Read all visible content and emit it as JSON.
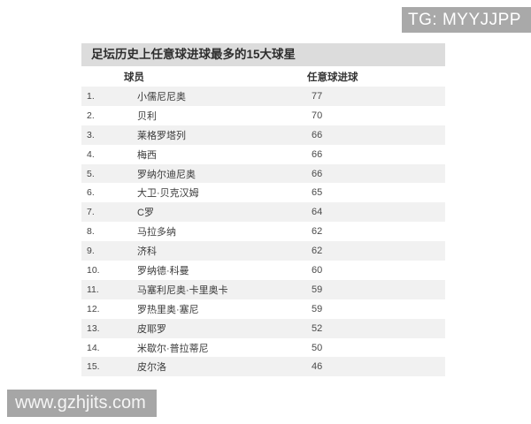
{
  "badge": {
    "label": "TG: MYYJJPP"
  },
  "watermark": {
    "label": "www.gzhjits.com"
  },
  "chart_data": {
    "type": "table",
    "title": "足坛历史上任意球进球最多的15大球星",
    "columns": [
      "球员",
      "任意球进球"
    ],
    "rows": [
      {
        "rank": "1.",
        "player": "小儒尼尼奥",
        "goals": 77
      },
      {
        "rank": "2.",
        "player": "贝利",
        "goals": 70
      },
      {
        "rank": "3.",
        "player": "莱格罗塔列",
        "goals": 66
      },
      {
        "rank": "4.",
        "player": "梅西",
        "goals": 66
      },
      {
        "rank": "5.",
        "player": "罗纳尔迪尼奥",
        "goals": 66
      },
      {
        "rank": "6.",
        "player": "大卫·贝克汉姆",
        "goals": 65
      },
      {
        "rank": "7.",
        "player": "C罗",
        "goals": 64
      },
      {
        "rank": "8.",
        "player": "马拉多纳",
        "goals": 62
      },
      {
        "rank": "9.",
        "player": "济科",
        "goals": 62
      },
      {
        "rank": "10.",
        "player": "罗纳德·科曼",
        "goals": 60
      },
      {
        "rank": "11.",
        "player": "马塞利尼奥·卡里奥卡",
        "goals": 59
      },
      {
        "rank": "12.",
        "player": "罗热里奥·塞尼",
        "goals": 59
      },
      {
        "rank": "13.",
        "player": "皮耶罗",
        "goals": 52
      },
      {
        "rank": "14.",
        "player": "米歇尔·普拉蒂尼",
        "goals": 50
      },
      {
        "rank": "15.",
        "player": "皮尔洛",
        "goals": 46
      }
    ]
  },
  "colors": {
    "badge_bg": "#a9a9a9",
    "watermark_bg": "#a6a6a6",
    "title_bar_bg": "#dcdcdc",
    "row_alt_bg": "#f1f1f1",
    "text": "#3b3b3b"
  }
}
